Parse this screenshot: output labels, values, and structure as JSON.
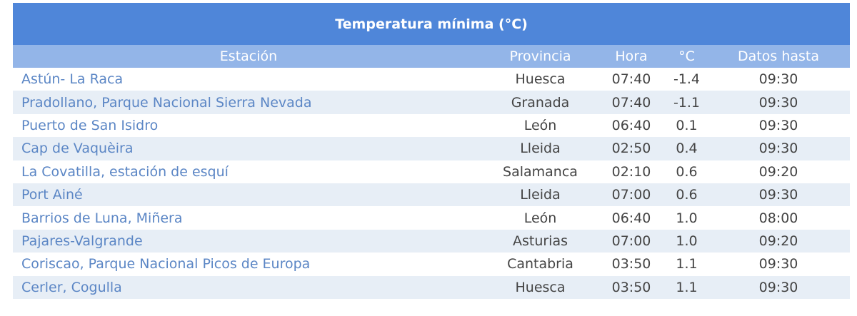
{
  "table": {
    "title": "Temperatura mínima (°C)",
    "columns": [
      "Estación",
      "Provincia",
      "Hora",
      "°C",
      "Datos hasta"
    ],
    "rows": [
      [
        "Astún- La Raca",
        "Huesca",
        "07:40",
        "-1.4",
        "09:30"
      ],
      [
        "Pradollano, Parque Nacional Sierra Nevada",
        "Granada",
        "07:40",
        "-1.1",
        "09:30"
      ],
      [
        "Puerto de San Isidro",
        "León",
        "06:40",
        "0.1",
        "09:30"
      ],
      [
        "Cap de Vaquèira",
        "Lleida",
        "02:50",
        "0.4",
        "09:30"
      ],
      [
        "La Covatilla, estación de esquí",
        "Salamanca",
        "02:10",
        "0.6",
        "09:20"
      ],
      [
        "Port Ainé",
        "Lleida",
        "07:00",
        "0.6",
        "09:30"
      ],
      [
        "Barrios de Luna, Miñera",
        "León",
        "06:40",
        "1.0",
        "08:00"
      ],
      [
        "Pajares-Valgrande",
        "Asturias",
        "07:00",
        "1.0",
        "09:20"
      ],
      [
        "Coriscao, Parque Nacional Picos de Europa",
        "Cantabria",
        "03:50",
        "1.1",
        "09:30"
      ],
      [
        "Cerler, Cogulla",
        "Huesca",
        "03:50",
        "1.1",
        "09:30"
      ]
    ]
  }
}
